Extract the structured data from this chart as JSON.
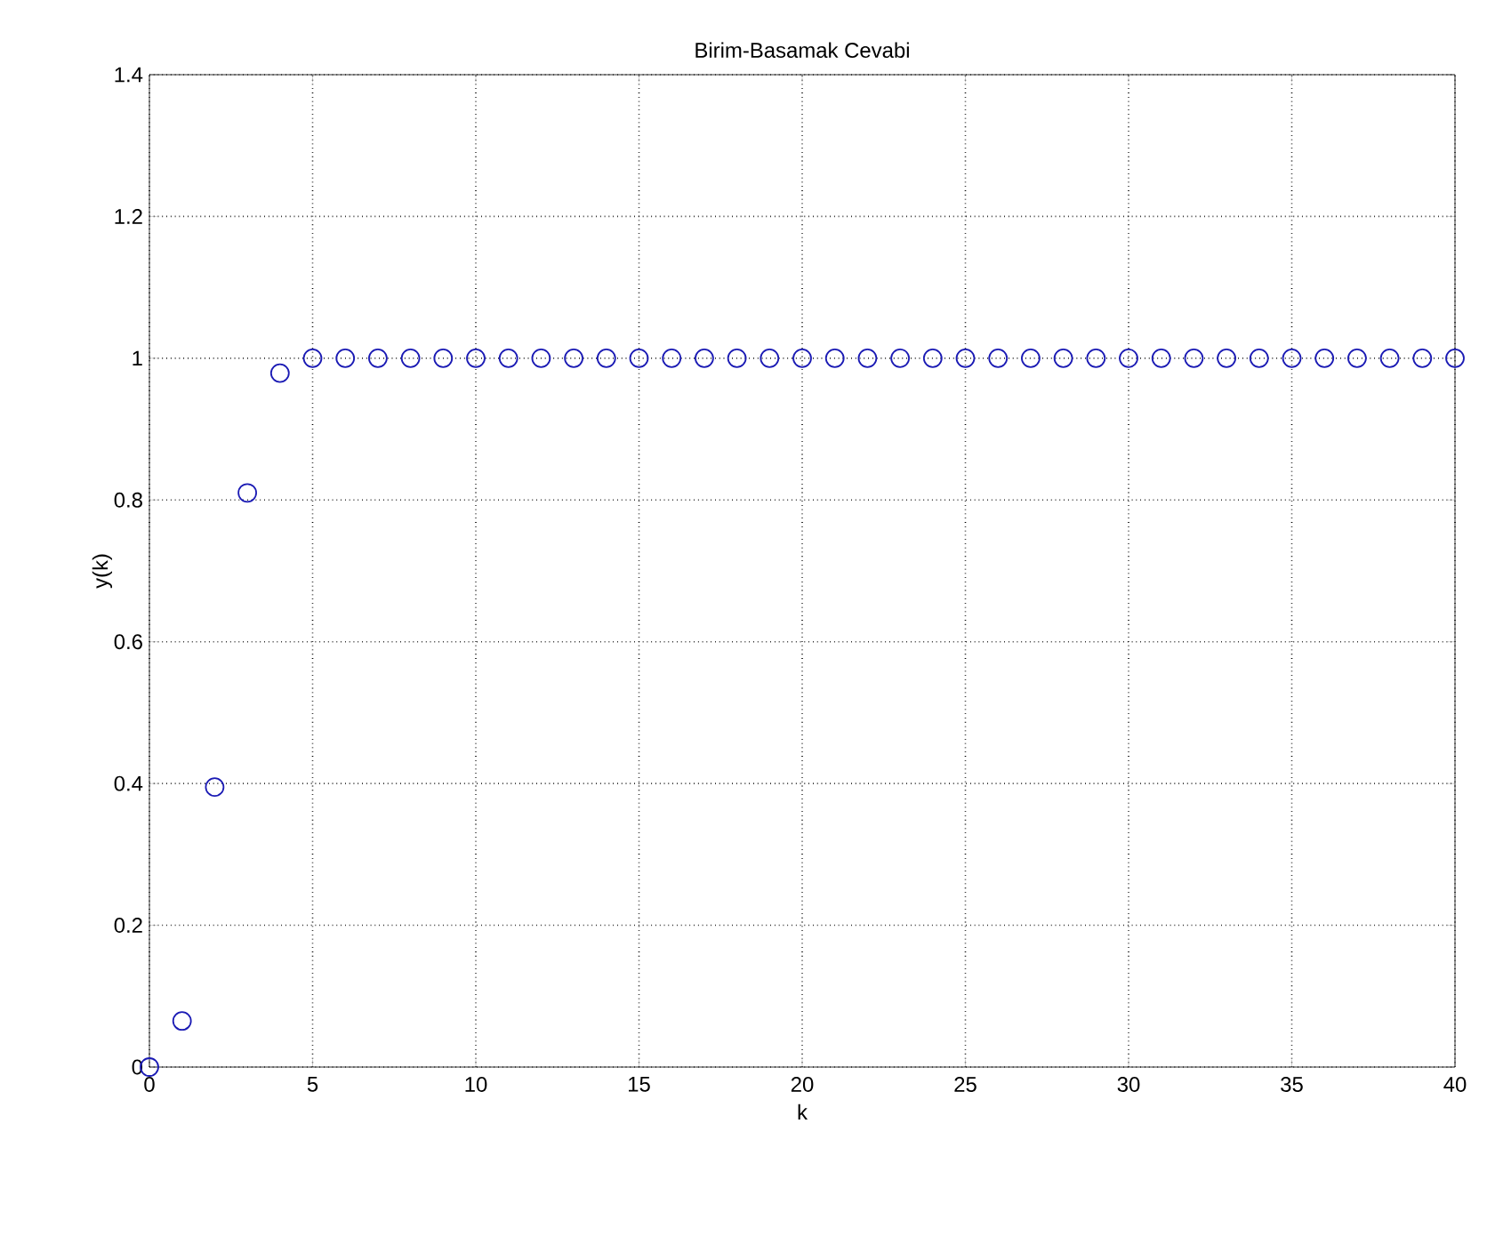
{
  "chart_data": {
    "type": "scatter",
    "title": "Birim-Basamak Cevabi",
    "xlabel": "k",
    "ylabel": "y(k)",
    "x": [
      0,
      1,
      2,
      3,
      4,
      5,
      6,
      7,
      8,
      9,
      10,
      11,
      12,
      13,
      14,
      15,
      16,
      17,
      18,
      19,
      20,
      21,
      22,
      23,
      24,
      25,
      26,
      27,
      28,
      29,
      30,
      31,
      32,
      33,
      34,
      35,
      36,
      37,
      38,
      39,
      40
    ],
    "series": [
      {
        "color": "#1a1ab4",
        "values": [
          0,
          0.065,
          0.395,
          0.81,
          0.979,
          1,
          1,
          1,
          1,
          1,
          1,
          1,
          1,
          1,
          1,
          1,
          1,
          1,
          1,
          1,
          1,
          1,
          1,
          1,
          1,
          1,
          1,
          1,
          1,
          1,
          1,
          1,
          1,
          1,
          1,
          1,
          1,
          1,
          1,
          1,
          1
        ]
      }
    ],
    "xlim": [
      0,
      40
    ],
    "ylim": [
      0,
      1.4
    ],
    "xticks": [
      0,
      5,
      10,
      15,
      20,
      25,
      30,
      35,
      40
    ],
    "yticks": [
      0,
      0.2,
      0.4,
      0.6,
      0.8,
      1,
      1.2,
      1.4
    ],
    "grid": true,
    "marker": "circle"
  }
}
